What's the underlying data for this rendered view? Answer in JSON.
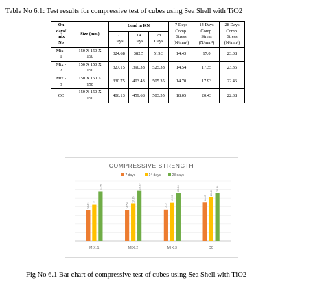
{
  "table": {
    "title": "Table No 6.1: Test results for compressive test of cubes using Sea Shell with TiO2",
    "headers": {
      "mix_no": [
        "On",
        "days/",
        "mix",
        "No"
      ],
      "size": "Size (mm)",
      "load_group": "Load in KN",
      "load_days": [
        [
          "7",
          "Days"
        ],
        [
          "14",
          "Days"
        ],
        [
          "28",
          "Days"
        ]
      ],
      "stress_days": [
        [
          "7 Days",
          "Comp.",
          "Stress",
          "(N/mm²)"
        ],
        [
          "14 Days",
          "Comp.",
          "Stress",
          "(N/mm²)"
        ],
        [
          "28 Days",
          "Comp.",
          "Stress",
          "(N/mm²)"
        ]
      ]
    },
    "rows": [
      {
        "mix": [
          "Mix -",
          "1"
        ],
        "size": [
          "150 X 150 X",
          "150"
        ],
        "load7": "324.68",
        "load14": "382.5",
        "load28": "519.3",
        "s7": "14.43",
        "s14": "17.0",
        "s28": "23.08"
      },
      {
        "mix": [
          "Mix -",
          "2"
        ],
        "size": [
          "150 X 150 X",
          "150"
        ],
        "load7": "327.15",
        "load14": "390.38",
        "load28": "525.38",
        "s7": "14.54",
        "s14": "17.35",
        "s28": "23.35"
      },
      {
        "mix": [
          "Mix -",
          "3"
        ],
        "size": [
          "150 X 150 X",
          "150"
        ],
        "load7": "330.75",
        "load14": "403.43",
        "load28": "505.35",
        "s7": "14.70",
        "s14": "17.93",
        "s28": "22.46"
      },
      {
        "mix": [
          "CC",
          ""
        ],
        "size": [
          "150 X 150 X",
          "150"
        ],
        "load7": "406.13",
        "load14": "459.68",
        "load28": "503.55",
        "s7": "18.05",
        "s14": "20.43",
        "s28": "22.38"
      }
    ]
  },
  "chart_data": {
    "type": "bar",
    "title": "COMPRESSIVE STRENGTH",
    "categories": [
      "MIX:1",
      "MIX:2",
      "MIX:3",
      "CC"
    ],
    "series": [
      {
        "name": "7 days",
        "color": "#ed7d31",
        "values": [
          14.43,
          14.54,
          14.7,
          18.05
        ],
        "labels": [
          "14.43",
          "14.54",
          "14.7",
          "18.05"
        ]
      },
      {
        "name": "14 days",
        "color": "#ffc000",
        "values": [
          17,
          17.35,
          17.93,
          20.43
        ],
        "labels": [
          "17",
          "17.35",
          "17.93",
          "20.43"
        ]
      },
      {
        "name": "28 days",
        "color": "#70ad47",
        "values": [
          23.08,
          23.35,
          22.46,
          22.38
        ],
        "labels": [
          "23.08",
          "23.35",
          "22.46",
          "22.38"
        ]
      }
    ],
    "ylim": [
      0,
      28
    ],
    "legend": "top",
    "grid": true
  },
  "caption": "Fig No 6.1 Bar chart of compressive test of cubes using Sea Shell with TiO2"
}
